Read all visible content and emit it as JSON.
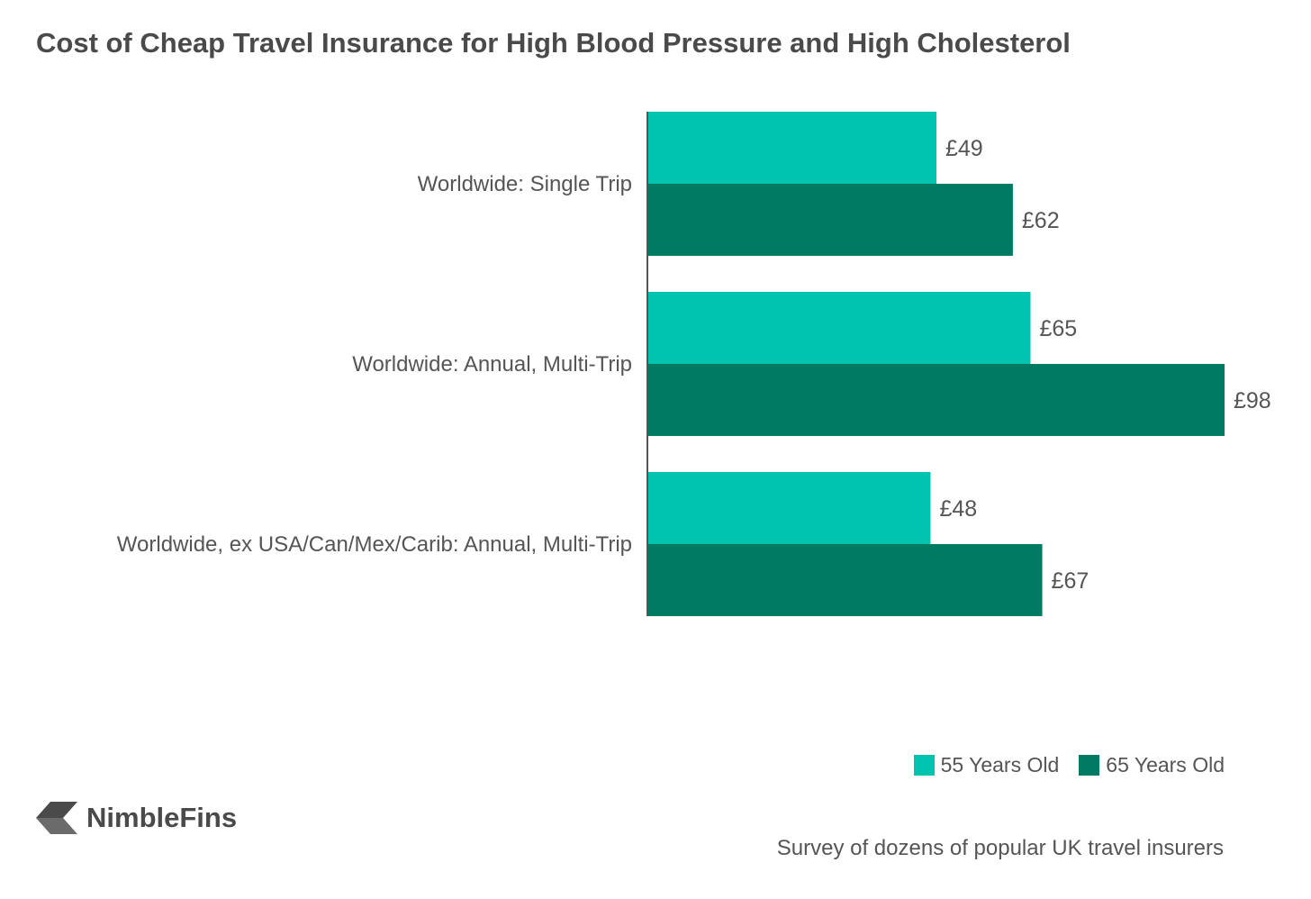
{
  "chart_data": {
    "type": "bar",
    "orientation": "horizontal",
    "title": "Cost of Cheap Travel Insurance for High Blood Pressure and High Cholesterol",
    "categories": [
      "Worldwide: Single Trip",
      "Worldwide: Annual, Multi-Trip",
      "Worldwide, ex USA/Can/Mex/Carib: Annual, Multi-Trip"
    ],
    "series": [
      {
        "name": "55 Years Old",
        "values": [
          49,
          65,
          48
        ],
        "labels": [
          "£49",
          "£65",
          "£48"
        ],
        "color": "#00c4ae"
      },
      {
        "name": "65 Years Old",
        "values": [
          62,
          98,
          67
        ],
        "labels": [
          "£62",
          "£98",
          "£67"
        ],
        "color": "#017a64"
      }
    ],
    "xlim": [
      0,
      98
    ],
    "grid": false,
    "legend_position": "bottom-right",
    "xlabel": "",
    "ylabel": ""
  },
  "brand": {
    "logo_text": "NimbleFins",
    "logo_icon": "nimblefins-chevron-icon"
  },
  "source_note": "Survey of dozens of popular UK travel insurers",
  "colors": {
    "text": "#4a4a4a",
    "axis": "#555555"
  }
}
